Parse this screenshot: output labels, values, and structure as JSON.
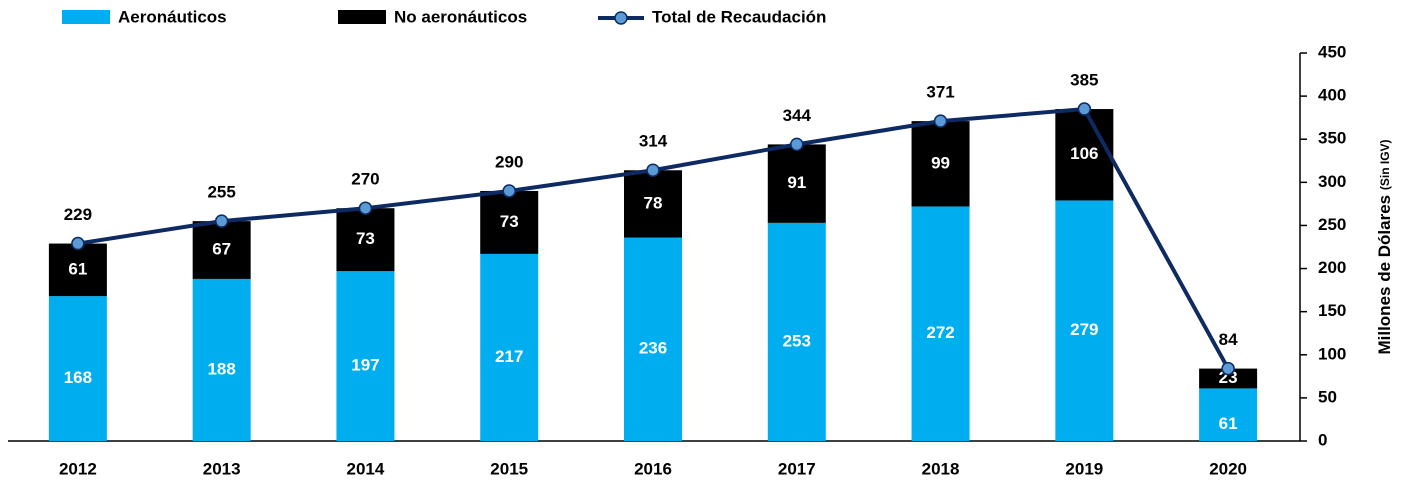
{
  "chart_data": {
    "type": "stacked-bar-line",
    "categories": [
      "2012",
      "2013",
      "2014",
      "2015",
      "2016",
      "2017",
      "2018",
      "2019",
      "2020"
    ],
    "series": [
      {
        "name": "Aeronáuticos",
        "color": "#00aeef",
        "values": [
          168,
          188,
          197,
          217,
          236,
          253,
          272,
          279,
          61
        ],
        "axis": "y2"
      },
      {
        "name": "No aeronáuticos",
        "color": "#000000",
        "values": [
          61,
          67,
          73,
          73,
          78,
          91,
          99,
          106,
          23
        ],
        "axis": "y2"
      },
      {
        "name": "Total de Recaudación",
        "color": "#0d2a63",
        "values": [
          229,
          255,
          270,
          290,
          314,
          344,
          371,
          385,
          84
        ],
        "axis": "y2"
      }
    ],
    "y2_label": "Millones de Dólares",
    "y2_label_note": "(Sin IGV)",
    "y2lim": [
      0,
      450
    ],
    "y2ticks": [
      0,
      50,
      100,
      150,
      200,
      250,
      300,
      350,
      400,
      450
    ],
    "grid": false,
    "legend": "top"
  }
}
